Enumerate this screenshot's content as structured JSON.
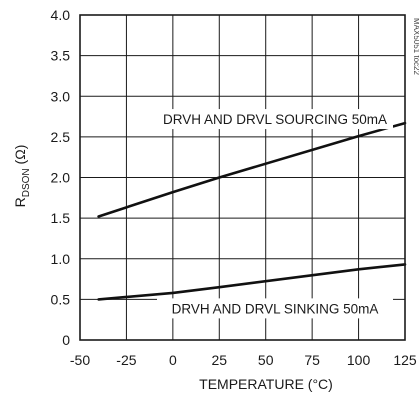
{
  "chart_data": {
    "type": "line",
    "xlabel": "TEMPERATURE (°C)",
    "ylabel_main": "R",
    "ylabel_sub": "DSON",
    "ylabel_unit": " (Ω)",
    "figure_id": "MAX5051 toc22",
    "xlim": [
      -50,
      125
    ],
    "ylim": [
      0,
      4.0
    ],
    "xticks": [
      -50,
      -25,
      0,
      25,
      50,
      75,
      100,
      125
    ],
    "yticks": [
      0,
      0.5,
      1.0,
      1.5,
      2.0,
      2.5,
      3.0,
      3.5,
      4.0
    ],
    "xtick_labels": [
      "-50",
      "-25",
      "0",
      "25",
      "50",
      "75",
      "100",
      "125"
    ],
    "ytick_labels": [
      "0",
      "0.5",
      "1.0",
      "1.5",
      "2.0",
      "2.5",
      "3.0",
      "3.5",
      "4.0"
    ],
    "grid": true,
    "series": [
      {
        "x": [
          -40,
          0,
          25,
          100,
          125
        ],
        "y": [
          1.52,
          1.82,
          2.0,
          2.51,
          2.67
        ]
      },
      {
        "x": [
          -40,
          0,
          25,
          100,
          125
        ],
        "y": [
          0.5,
          0.58,
          0.65,
          0.87,
          0.93
        ]
      }
    ],
    "annotations": [
      {
        "text": "DRVH AND DRVL SOURCING 50mA",
        "x": 55,
        "y": 2.67
      },
      {
        "text": "DRVH AND DRVL SINKING 50mA",
        "x": 55,
        "y": 0.34
      }
    ]
  }
}
